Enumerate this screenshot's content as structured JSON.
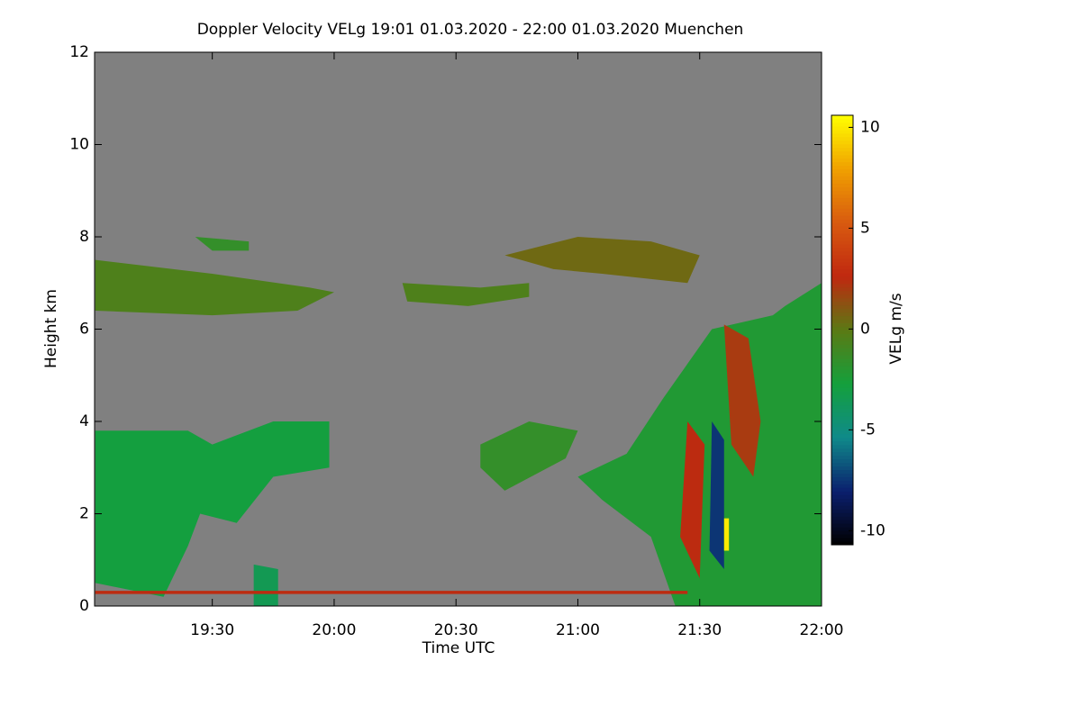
{
  "chart_data": {
    "type": "heatmap",
    "title": "Doppler Velocity VELg   19:01 01.03.2020 - 22:00 01.03.2020 Muenchen",
    "x_label": "Time UTC",
    "y_label": "Height km",
    "colorbar_label": "VELg m/s",
    "xlim": [
      19.017,
      22.0
    ],
    "xticks": [
      {
        "value": 19.5,
        "label": "19:30"
      },
      {
        "value": 20.0,
        "label": "20:00"
      },
      {
        "value": 20.5,
        "label": "20:30"
      },
      {
        "value": 21.0,
        "label": "21:00"
      },
      {
        "value": 21.5,
        "label": "21:30"
      },
      {
        "value": 22.0,
        "label": "22:00"
      }
    ],
    "ylim": [
      0,
      12
    ],
    "yticks": [
      0,
      2,
      4,
      6,
      8,
      10,
      12
    ],
    "zlim": [
      -10.7,
      10.6
    ],
    "zticks": [
      -10,
      -5,
      0,
      5,
      10
    ],
    "background": "#808080",
    "colorscale": [
      "#000000",
      "#0b1f6e",
      "#0f8a8a",
      "#14a03c",
      "#5a7a14",
      "#c02810",
      "#d85a10",
      "#f0a000",
      "#ffff00"
    ],
    "regions": [
      {
        "x": [
          19.02,
          19.5,
          19.9,
          20.0,
          19.85,
          19.5,
          19.02
        ],
        "y": [
          7.5,
          7.2,
          6.9,
          6.8,
          6.4,
          6.3,
          6.4
        ],
        "value": -0.5
      },
      {
        "x": [
          19.43,
          19.65,
          19.65,
          19.5
        ],
        "y": [
          8.0,
          7.9,
          7.7,
          7.7
        ],
        "value": -1.5
      },
      {
        "x": [
          20.28,
          20.6,
          20.8,
          20.8,
          20.55,
          20.3
        ],
        "y": [
          7.0,
          6.9,
          7.0,
          6.7,
          6.5,
          6.6
        ],
        "value": -0.5
      },
      {
        "x": [
          20.7,
          21.0,
          21.3,
          21.5,
          21.45,
          21.1,
          20.9
        ],
        "y": [
          7.6,
          8.0,
          7.9,
          7.6,
          7.0,
          7.2,
          7.3
        ],
        "value": 0.5
      },
      {
        "x": [
          19.02,
          19.4,
          19.5,
          19.75,
          19.98,
          19.98,
          19.75,
          19.6,
          19.45,
          19.4,
          19.3,
          19.02
        ],
        "y": [
          3.8,
          3.8,
          3.5,
          4.0,
          4.0,
          3.0,
          2.8,
          1.8,
          2.0,
          1.3,
          0.2,
          0.5
        ],
        "value": -2.8
      },
      {
        "x": [
          19.67,
          19.77,
          19.77,
          19.67
        ],
        "y": [
          0.9,
          0.8,
          0.0,
          0.0
        ],
        "value": -3.5
      },
      {
        "x": [
          20.6,
          20.8,
          21.0,
          20.95,
          20.7,
          20.6
        ],
        "y": [
          3.5,
          4.0,
          3.8,
          3.2,
          2.5,
          3.0
        ],
        "value": -1.5
      },
      {
        "x": [
          21.0,
          21.2,
          21.35,
          21.55,
          21.8,
          21.85,
          22.0,
          22.0,
          21.4,
          21.3,
          21.1
        ],
        "y": [
          2.8,
          3.3,
          4.5,
          6.0,
          6.3,
          6.5,
          7.0,
          0.0,
          0.0,
          1.5,
          2.3
        ],
        "value": -2.2
      },
      {
        "x": [
          21.45,
          21.52,
          21.5,
          21.42
        ],
        "y": [
          4.0,
          3.5,
          0.6,
          1.5
        ],
        "value": 2.5
      },
      {
        "x": [
          21.6,
          21.7,
          21.75,
          21.72,
          21.63
        ],
        "y": [
          6.1,
          5.8,
          4.0,
          2.8,
          3.5
        ],
        "value": 2.0
      },
      {
        "x": [
          21.55,
          21.6,
          21.6,
          21.54
        ],
        "y": [
          4.0,
          3.6,
          0.8,
          1.2
        ],
        "value": -7.5
      },
      {
        "x": [
          21.6,
          21.62,
          21.62,
          21.6
        ],
        "y": [
          1.9,
          1.9,
          1.2,
          1.2
        ],
        "value": 10.0
      },
      {
        "x": [
          19.02,
          21.45,
          21.45,
          19.02
        ],
        "y": [
          0.33,
          0.33,
          0.26,
          0.26
        ],
        "value": 2.5
      }
    ]
  }
}
